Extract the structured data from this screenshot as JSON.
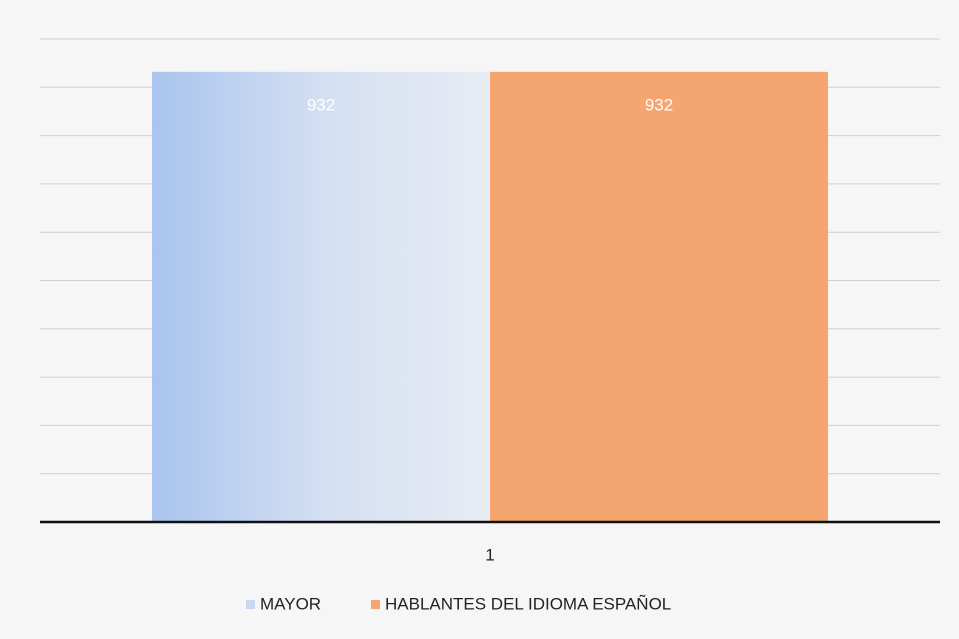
{
  "chart_data": {
    "type": "bar",
    "categories": [
      "1"
    ],
    "series": [
      {
        "name": "MAYOR",
        "color": "#c9d8f0",
        "values": [
          932
        ]
      },
      {
        "name": "HABLANTES DEL IDIOMA ESPAÑOL",
        "color": "#f5a56f",
        "values": [
          932
        ]
      }
    ],
    "ylim": [
      0,
      1000
    ],
    "yticks": [
      0,
      100,
      200,
      300,
      400,
      500,
      600,
      700,
      800,
      900,
      1000
    ],
    "grid": true
  }
}
